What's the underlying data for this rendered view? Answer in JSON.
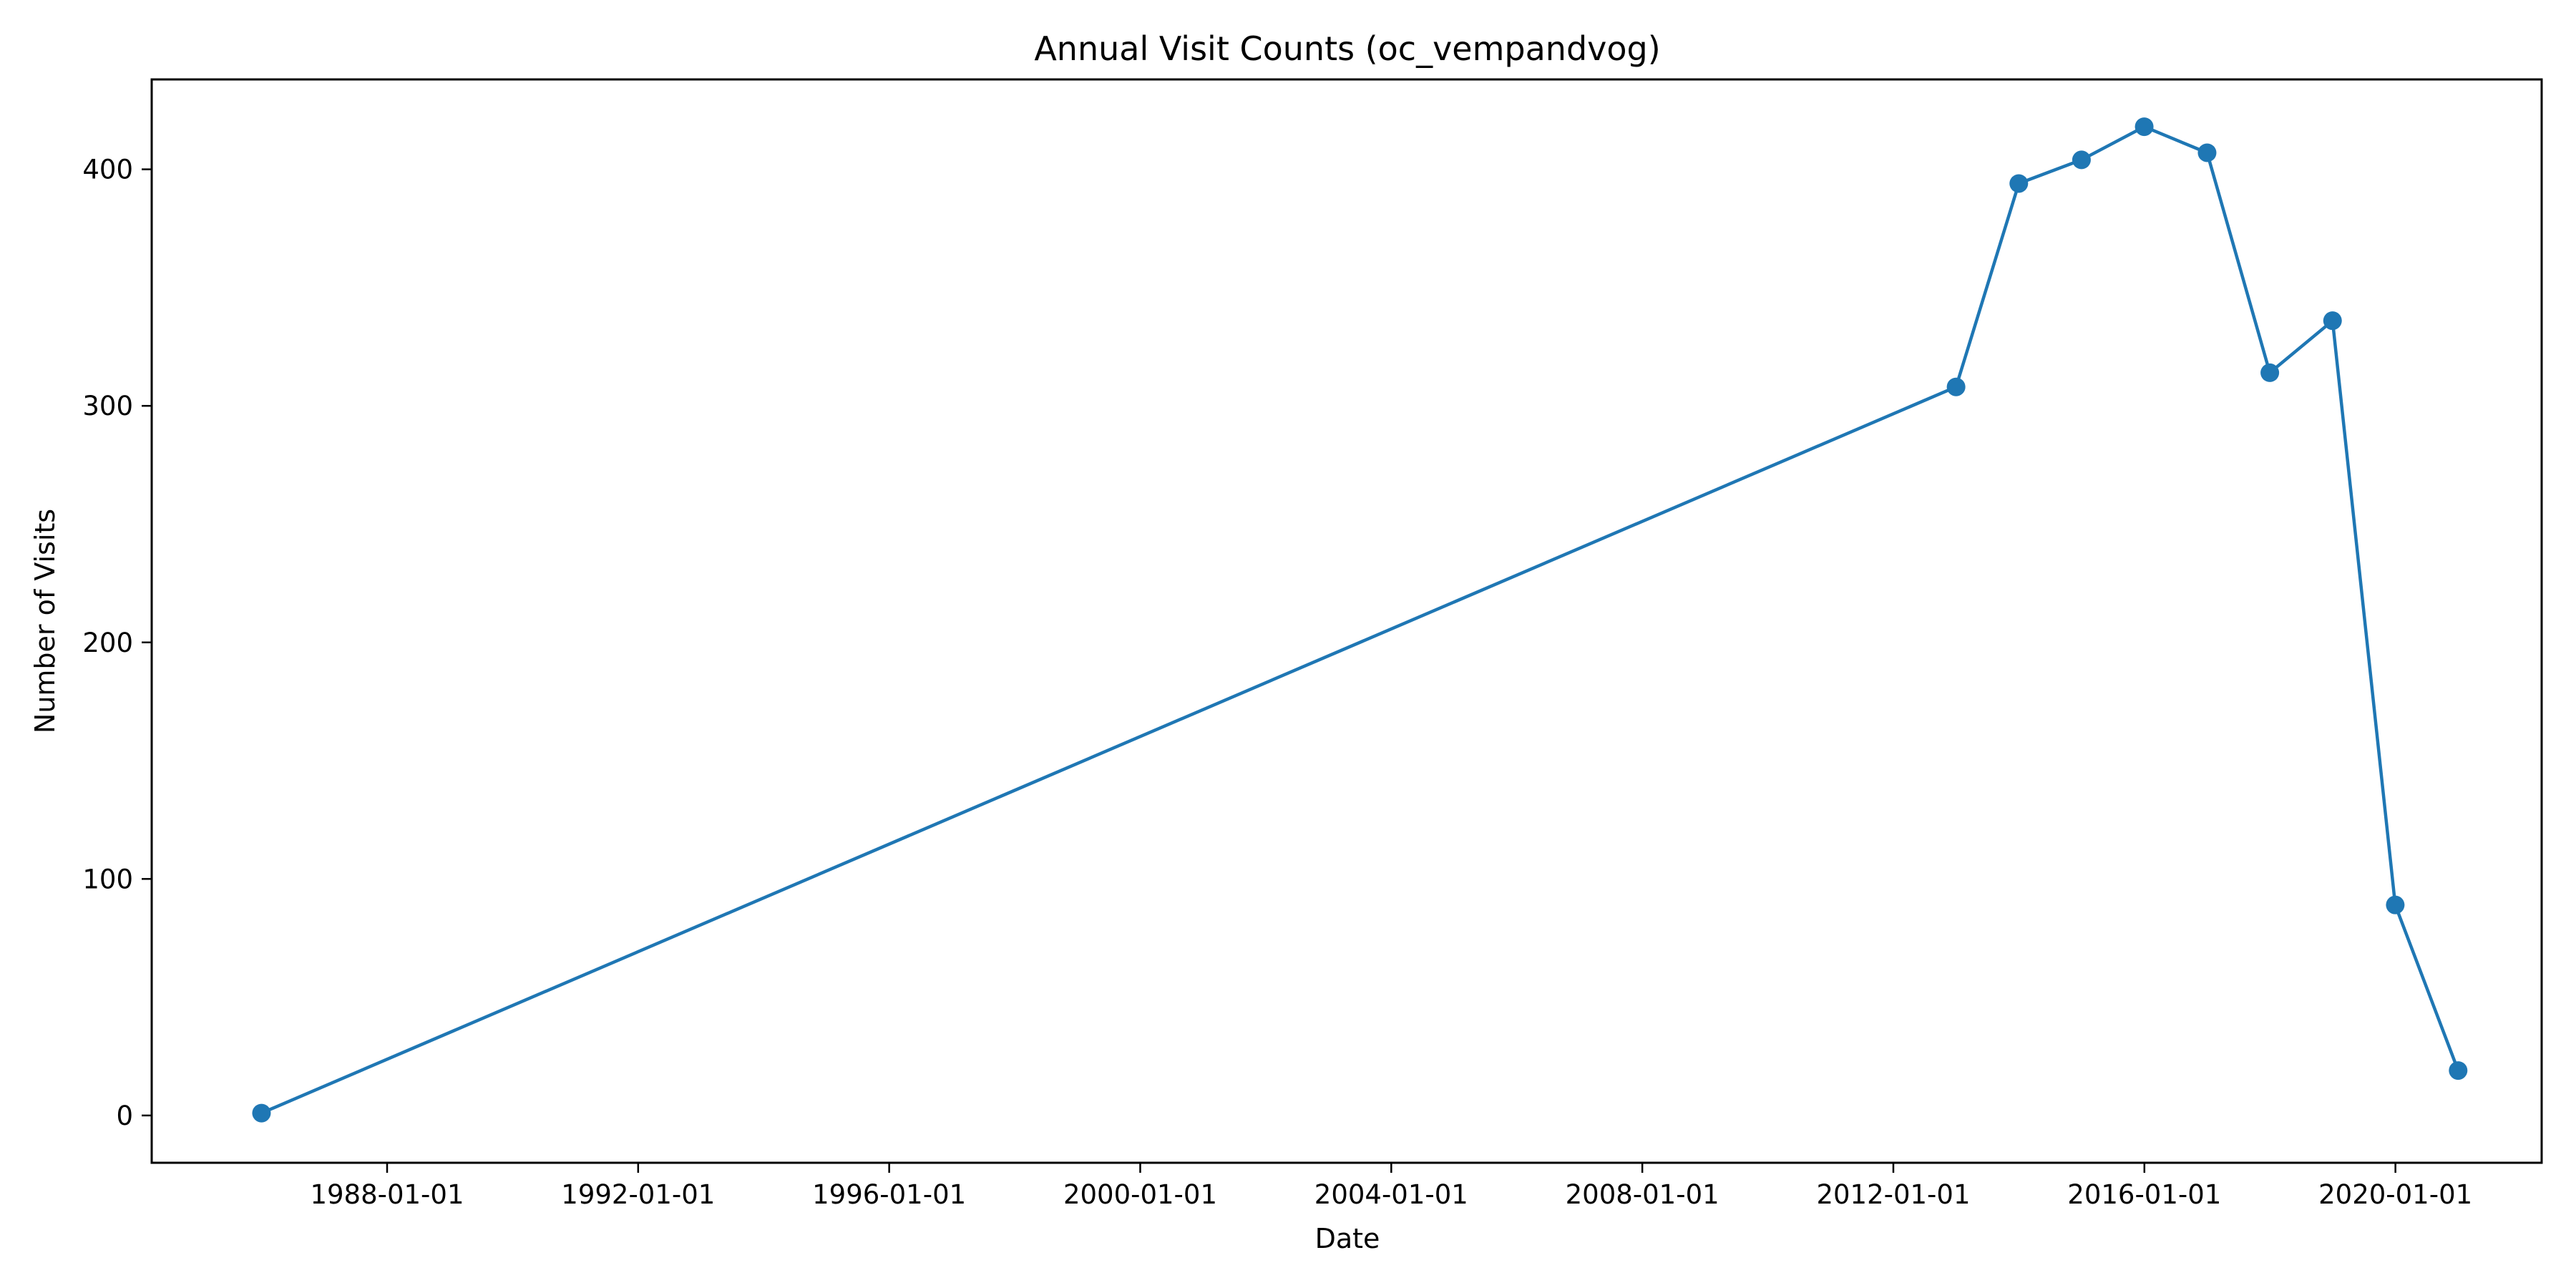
{
  "chart_data": {
    "type": "line",
    "title": "Annual Visit Counts (oc_vempandvog)",
    "xlabel": "Date",
    "ylabel": "Number of Visits",
    "x_ticks": [
      "1988-01-01",
      "1992-01-01",
      "1996-01-01",
      "2000-01-01",
      "2004-01-01",
      "2008-01-01",
      "2012-01-01",
      "2016-01-01",
      "2020-01-01"
    ],
    "y_ticks": [
      0,
      100,
      200,
      300,
      400
    ],
    "xlim": [
      "1984-04-01",
      "2022-05-01"
    ],
    "ylim": [
      -20,
      438
    ],
    "grid": false,
    "series": [
      {
        "color": "#1f77b4",
        "marker": "circle",
        "points": [
          {
            "x": "1985-12-31",
            "y": 1
          },
          {
            "x": "2012-12-31",
            "y": 308
          },
          {
            "x": "2013-12-31",
            "y": 394
          },
          {
            "x": "2014-12-31",
            "y": 404
          },
          {
            "x": "2015-12-31",
            "y": 418
          },
          {
            "x": "2016-12-31",
            "y": 407
          },
          {
            "x": "2017-12-31",
            "y": 314
          },
          {
            "x": "2018-12-31",
            "y": 336
          },
          {
            "x": "2019-12-31",
            "y": 89
          },
          {
            "x": "2020-12-31",
            "y": 19
          }
        ]
      }
    ]
  }
}
